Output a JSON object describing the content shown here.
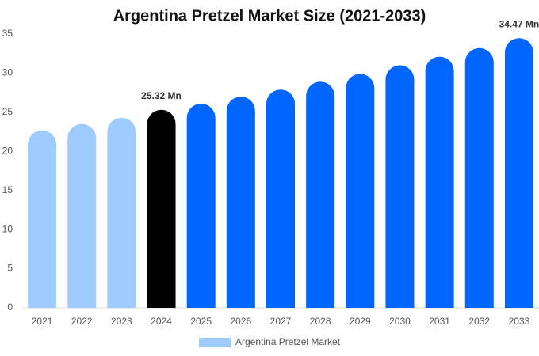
{
  "chart_data": {
    "type": "bar",
    "title": "Argentina Pretzel Market Size (2021-2033)",
    "categories": [
      "2021",
      "2022",
      "2023",
      "2024",
      "2025",
      "2026",
      "2027",
      "2028",
      "2029",
      "2030",
      "2031",
      "2032",
      "2033"
    ],
    "series": [
      {
        "name": "Argentina Pretzel Market",
        "color": "#a0cbff",
        "colors": [
          "#a0cbff",
          "#a0cbff",
          "#a0cbff",
          "#000000",
          "#0066ff",
          "#0066ff",
          "#0066ff",
          "#0066ff",
          "#0066ff",
          "#0066ff",
          "#0066ff",
          "#0066ff",
          "#0066ff"
        ],
        "values": [
          22.7,
          23.5,
          24.3,
          25.32,
          26.1,
          27.0,
          27.9,
          28.9,
          29.9,
          31.0,
          32.1,
          33.2,
          34.47
        ],
        "value_labels": [
          null,
          null,
          null,
          "25.32 Mn",
          null,
          null,
          null,
          null,
          null,
          null,
          null,
          null,
          "34.47 Mn"
        ]
      }
    ],
    "ylim": [
      0,
      35
    ],
    "yticks": [
      0,
      5,
      10,
      15,
      20,
      25,
      30,
      35
    ],
    "grid": false
  }
}
